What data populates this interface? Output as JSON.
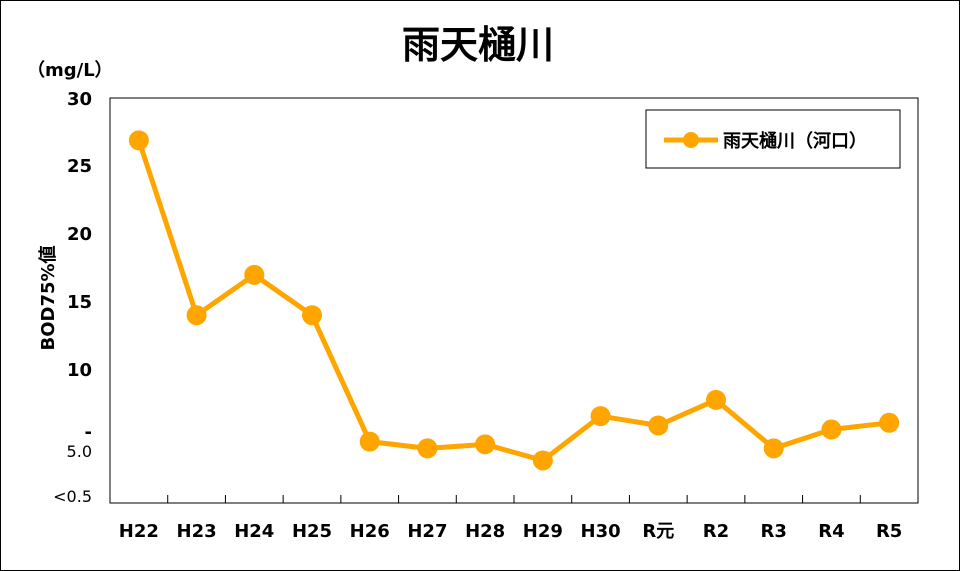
{
  "chart_data": {
    "type": "line",
    "title": "雨天樋川",
    "unit": "（mg/L）",
    "ylabel": "BOD75%値",
    "categories": [
      "H22",
      "H23",
      "H24",
      "H25",
      "H26",
      "H27",
      "H28",
      "H29",
      "H30",
      "R元",
      "R2",
      "R3",
      "R4",
      "R5"
    ],
    "series": [
      {
        "name": "雨天樋川（河口）",
        "values": [
          27,
          14,
          17,
          14,
          4.6,
          4.1,
          4.4,
          3.2,
          6.5,
          5.8,
          7.7,
          4.1,
          5.5,
          6.0
        ]
      }
    ],
    "ylim": [
      0,
      30
    ],
    "yticks": [
      "30",
      "25",
      "20",
      "15",
      "10",
      "-",
      "5.0",
      "<0.5"
    ],
    "grid": false,
    "legend_position": "top-right",
    "color": "#FFA500"
  }
}
